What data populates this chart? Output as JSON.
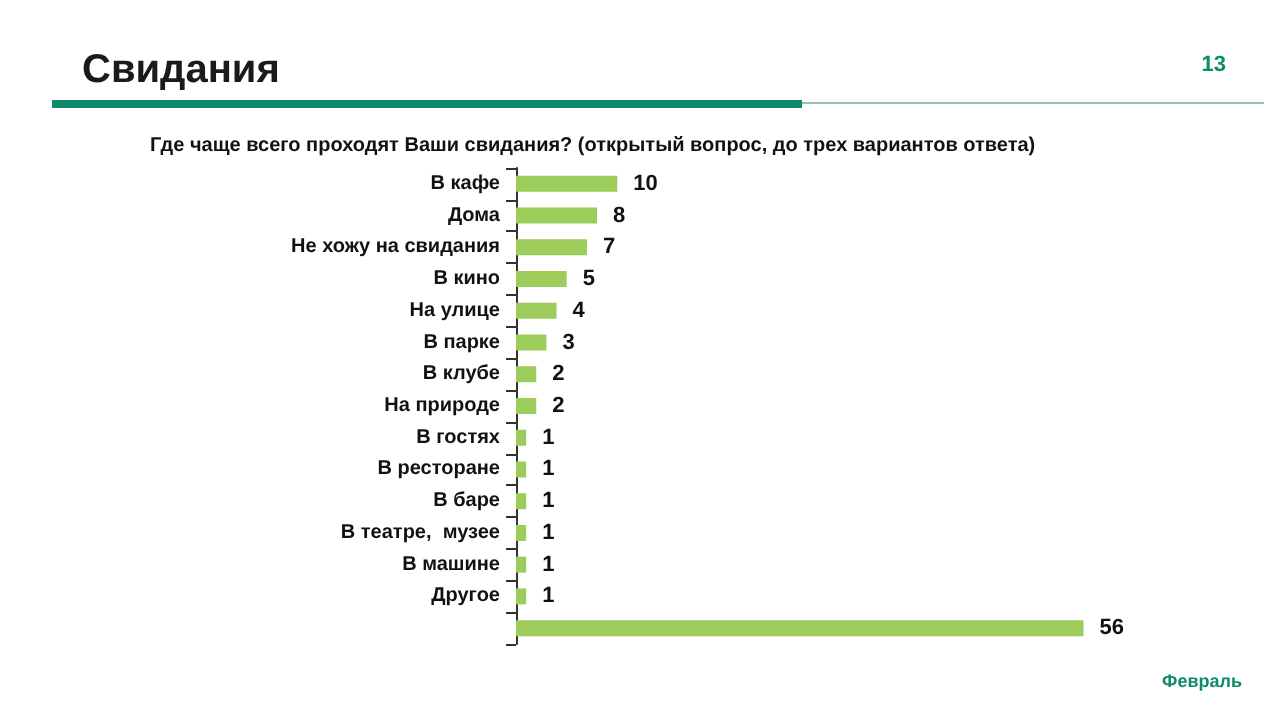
{
  "chart_data": {
    "type": "bar",
    "orientation": "horizontal",
    "title": "Свидания",
    "subtitle": "Где чаще всего проходят Ваши свидания? (открытый вопрос, до трех вариантов ответа)",
    "categories": [
      "В кафе",
      "Дома",
      "Не хожу на свидания",
      "В кино",
      "На улице",
      "В парке",
      "В клубе",
      "На природе",
      "В гостях",
      "В ресторане",
      "В баре",
      "В театре,  музее",
      "В машине",
      "Другое",
      null
    ],
    "values": [
      10,
      8,
      7,
      5,
      4,
      3,
      2,
      2,
      1,
      1,
      1,
      1,
      1,
      1,
      56
    ],
    "color": "#9ccc5a",
    "data_labels": true,
    "grid": false,
    "annotations": [
      "13",
      "Февраль"
    ]
  }
}
